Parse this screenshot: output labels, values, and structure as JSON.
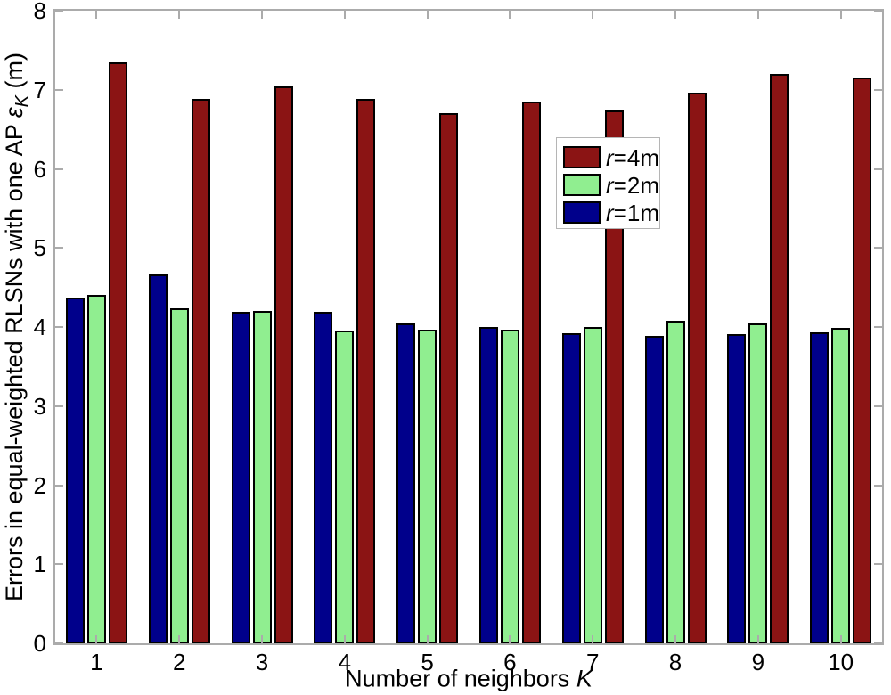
{
  "labels": {
    "y_prefix": "Errors in equal-weighted RLSNs with one AP ",
    "y_symbol": "ε",
    "y_subscript": "K",
    "y_suffix": " (m)",
    "x_prefix": "Number of neighbors ",
    "x_italic": "K"
  },
  "legend": {
    "items": [
      {
        "sym": "r",
        "rest": "=4m",
        "color": "#8b1414"
      },
      {
        "sym": "r",
        "rest": "=2m",
        "color": "#90ee90"
      },
      {
        "sym": "r",
        "rest": "=1m",
        "color": "#00008b"
      }
    ]
  },
  "chart_data": {
    "type": "bar",
    "categories": [
      1,
      2,
      3,
      4,
      5,
      6,
      7,
      8,
      9,
      10
    ],
    "series": [
      {
        "name": "r=4m",
        "color": "#8b1414",
        "values": [
          7.35,
          6.88,
          7.04,
          6.88,
          6.7,
          6.85,
          6.74,
          6.96,
          7.2,
          7.16
        ]
      },
      {
        "name": "r=2m",
        "color": "#90ee90",
        "values": [
          4.41,
          4.24,
          4.2,
          3.96,
          3.97,
          3.97,
          4.0,
          4.08,
          4.05,
          3.99
        ]
      },
      {
        "name": "r=1m",
        "color": "#00008b",
        "values": [
          4.37,
          4.67,
          4.19,
          4.19,
          4.05,
          4.0,
          3.92,
          3.89,
          3.91,
          3.93
        ]
      }
    ],
    "draw_order": [
      "r=1m",
      "r=2m",
      "r=4m"
    ],
    "title": "",
    "xlabel": "Number of neighbors K",
    "ylabel": "Errors in equal-weighted RLSNs with one AP ε_K (m)",
    "ylim": [
      0,
      8
    ],
    "yticks": [
      0,
      1,
      2,
      3,
      4,
      5,
      6,
      7,
      8
    ],
    "grid": false,
    "legend_position": "upper center-right",
    "bar_edge_color": "#000000",
    "axis_color": "#ababab"
  }
}
